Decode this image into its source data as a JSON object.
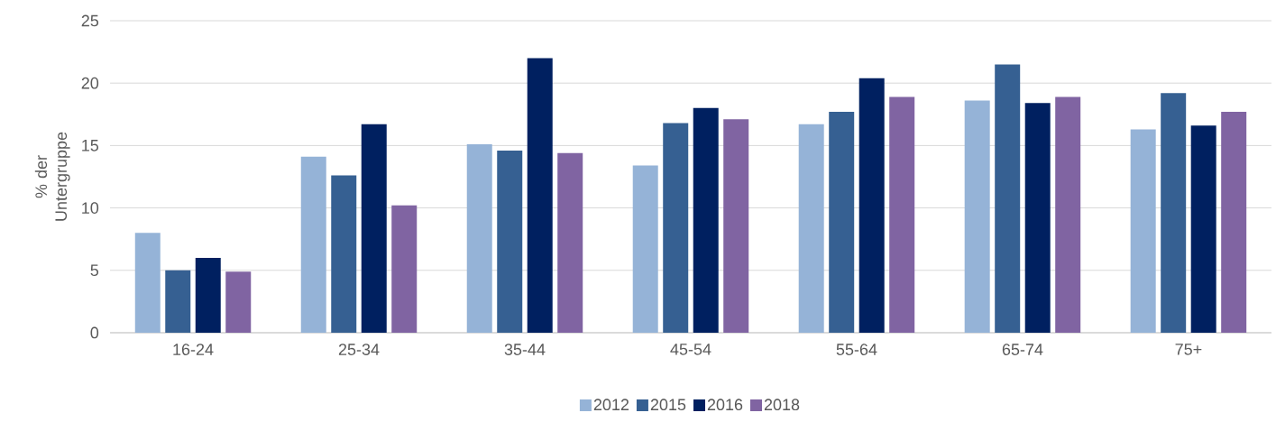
{
  "chart_data": {
    "type": "bar",
    "ylabel": "% der Untergruppe",
    "categories": [
      "16-24",
      "25-34",
      "35-44",
      "45-54",
      "55-64",
      "65-74",
      "75+"
    ],
    "series": [
      {
        "name": "2012",
        "color": "#95b3d7",
        "values": [
          8.0,
          14.1,
          15.1,
          13.4,
          16.7,
          18.6,
          16.3
        ]
      },
      {
        "name": "2015",
        "color": "#366092",
        "values": [
          5.0,
          12.6,
          14.6,
          16.8,
          17.7,
          21.5,
          19.2
        ]
      },
      {
        "name": "2016",
        "color": "#002060",
        "values": [
          6.0,
          16.7,
          22.0,
          18.0,
          20.4,
          18.4,
          16.6
        ]
      },
      {
        "name": "2018",
        "color": "#8064a2",
        "values": [
          4.9,
          10.2,
          14.4,
          17.1,
          18.9,
          18.9,
          17.7
        ]
      }
    ],
    "ylim": [
      0,
      25
    ],
    "yticks": [
      0,
      5,
      10,
      15,
      20,
      25
    ],
    "grid": "y",
    "legend": "bottom"
  }
}
